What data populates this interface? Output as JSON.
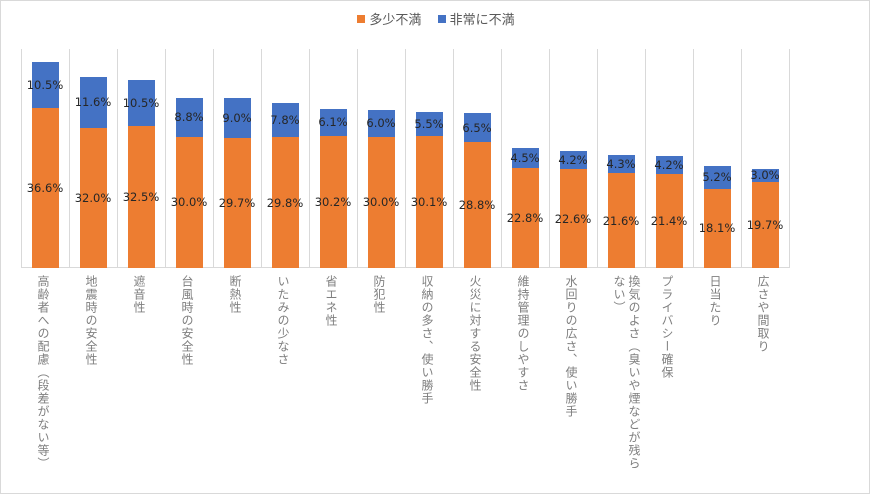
{
  "legend": [
    {
      "label": "多少不満",
      "color": "#ed7d31"
    },
    {
      "label": "非常に不満",
      "color": "#4472c4"
    }
  ],
  "chart_data": {
    "type": "bar",
    "stacked": true,
    "title": "",
    "xlabel": "",
    "ylabel": "",
    "ylim": [
      0,
      50
    ],
    "grid": "vertical category gridlines",
    "legend_position": "top",
    "categories": [
      "高齢者への配慮（段差がない等）",
      "地震時の安全性",
      "遮音性",
      "台風時の安全性",
      "断熱性",
      "いたみの少なさ",
      "省エネ性",
      "防犯性",
      "収納の多さ、使い勝手",
      "火災に対する安全性",
      "維持管理のしやすさ",
      "水回りの広さ、使い勝手",
      "換気のよさ（臭いや煙などが残らない）",
      "プライバシー確保",
      "日当たり",
      "広さや間取り"
    ],
    "series": [
      {
        "name": "多少不満",
        "color": "#ed7d31",
        "values": [
          36.6,
          32.0,
          32.5,
          30.0,
          29.7,
          29.8,
          30.2,
          30.0,
          30.1,
          28.8,
          22.8,
          22.6,
          21.6,
          21.4,
          18.1,
          19.7
        ],
        "labels": [
          "36.6%",
          "32.0%",
          "32.5%",
          "30.0%",
          "29.7%",
          "29.8%",
          "30.2%",
          "30.0%",
          "30.1%",
          "28.8%",
          "22.8%",
          "22.6%",
          "21.6%",
          "21.4%",
          "18.1%",
          "19.7%"
        ]
      },
      {
        "name": "非常に不満",
        "color": "#4472c4",
        "values": [
          10.5,
          11.6,
          10.5,
          8.8,
          9.0,
          7.8,
          6.1,
          6.0,
          5.5,
          6.5,
          4.5,
          4.2,
          4.3,
          4.2,
          5.2,
          3.0
        ],
        "labels": [
          "10.5%",
          "11.6%",
          "10.5%",
          "8.8%",
          "9.0%",
          "7.8%",
          "6.1%",
          "6.0%",
          "5.5%",
          "6.5%",
          "4.5%",
          "4.2%",
          "4.3%",
          "4.2%",
          "5.2%",
          "3.0%"
        ]
      }
    ]
  }
}
